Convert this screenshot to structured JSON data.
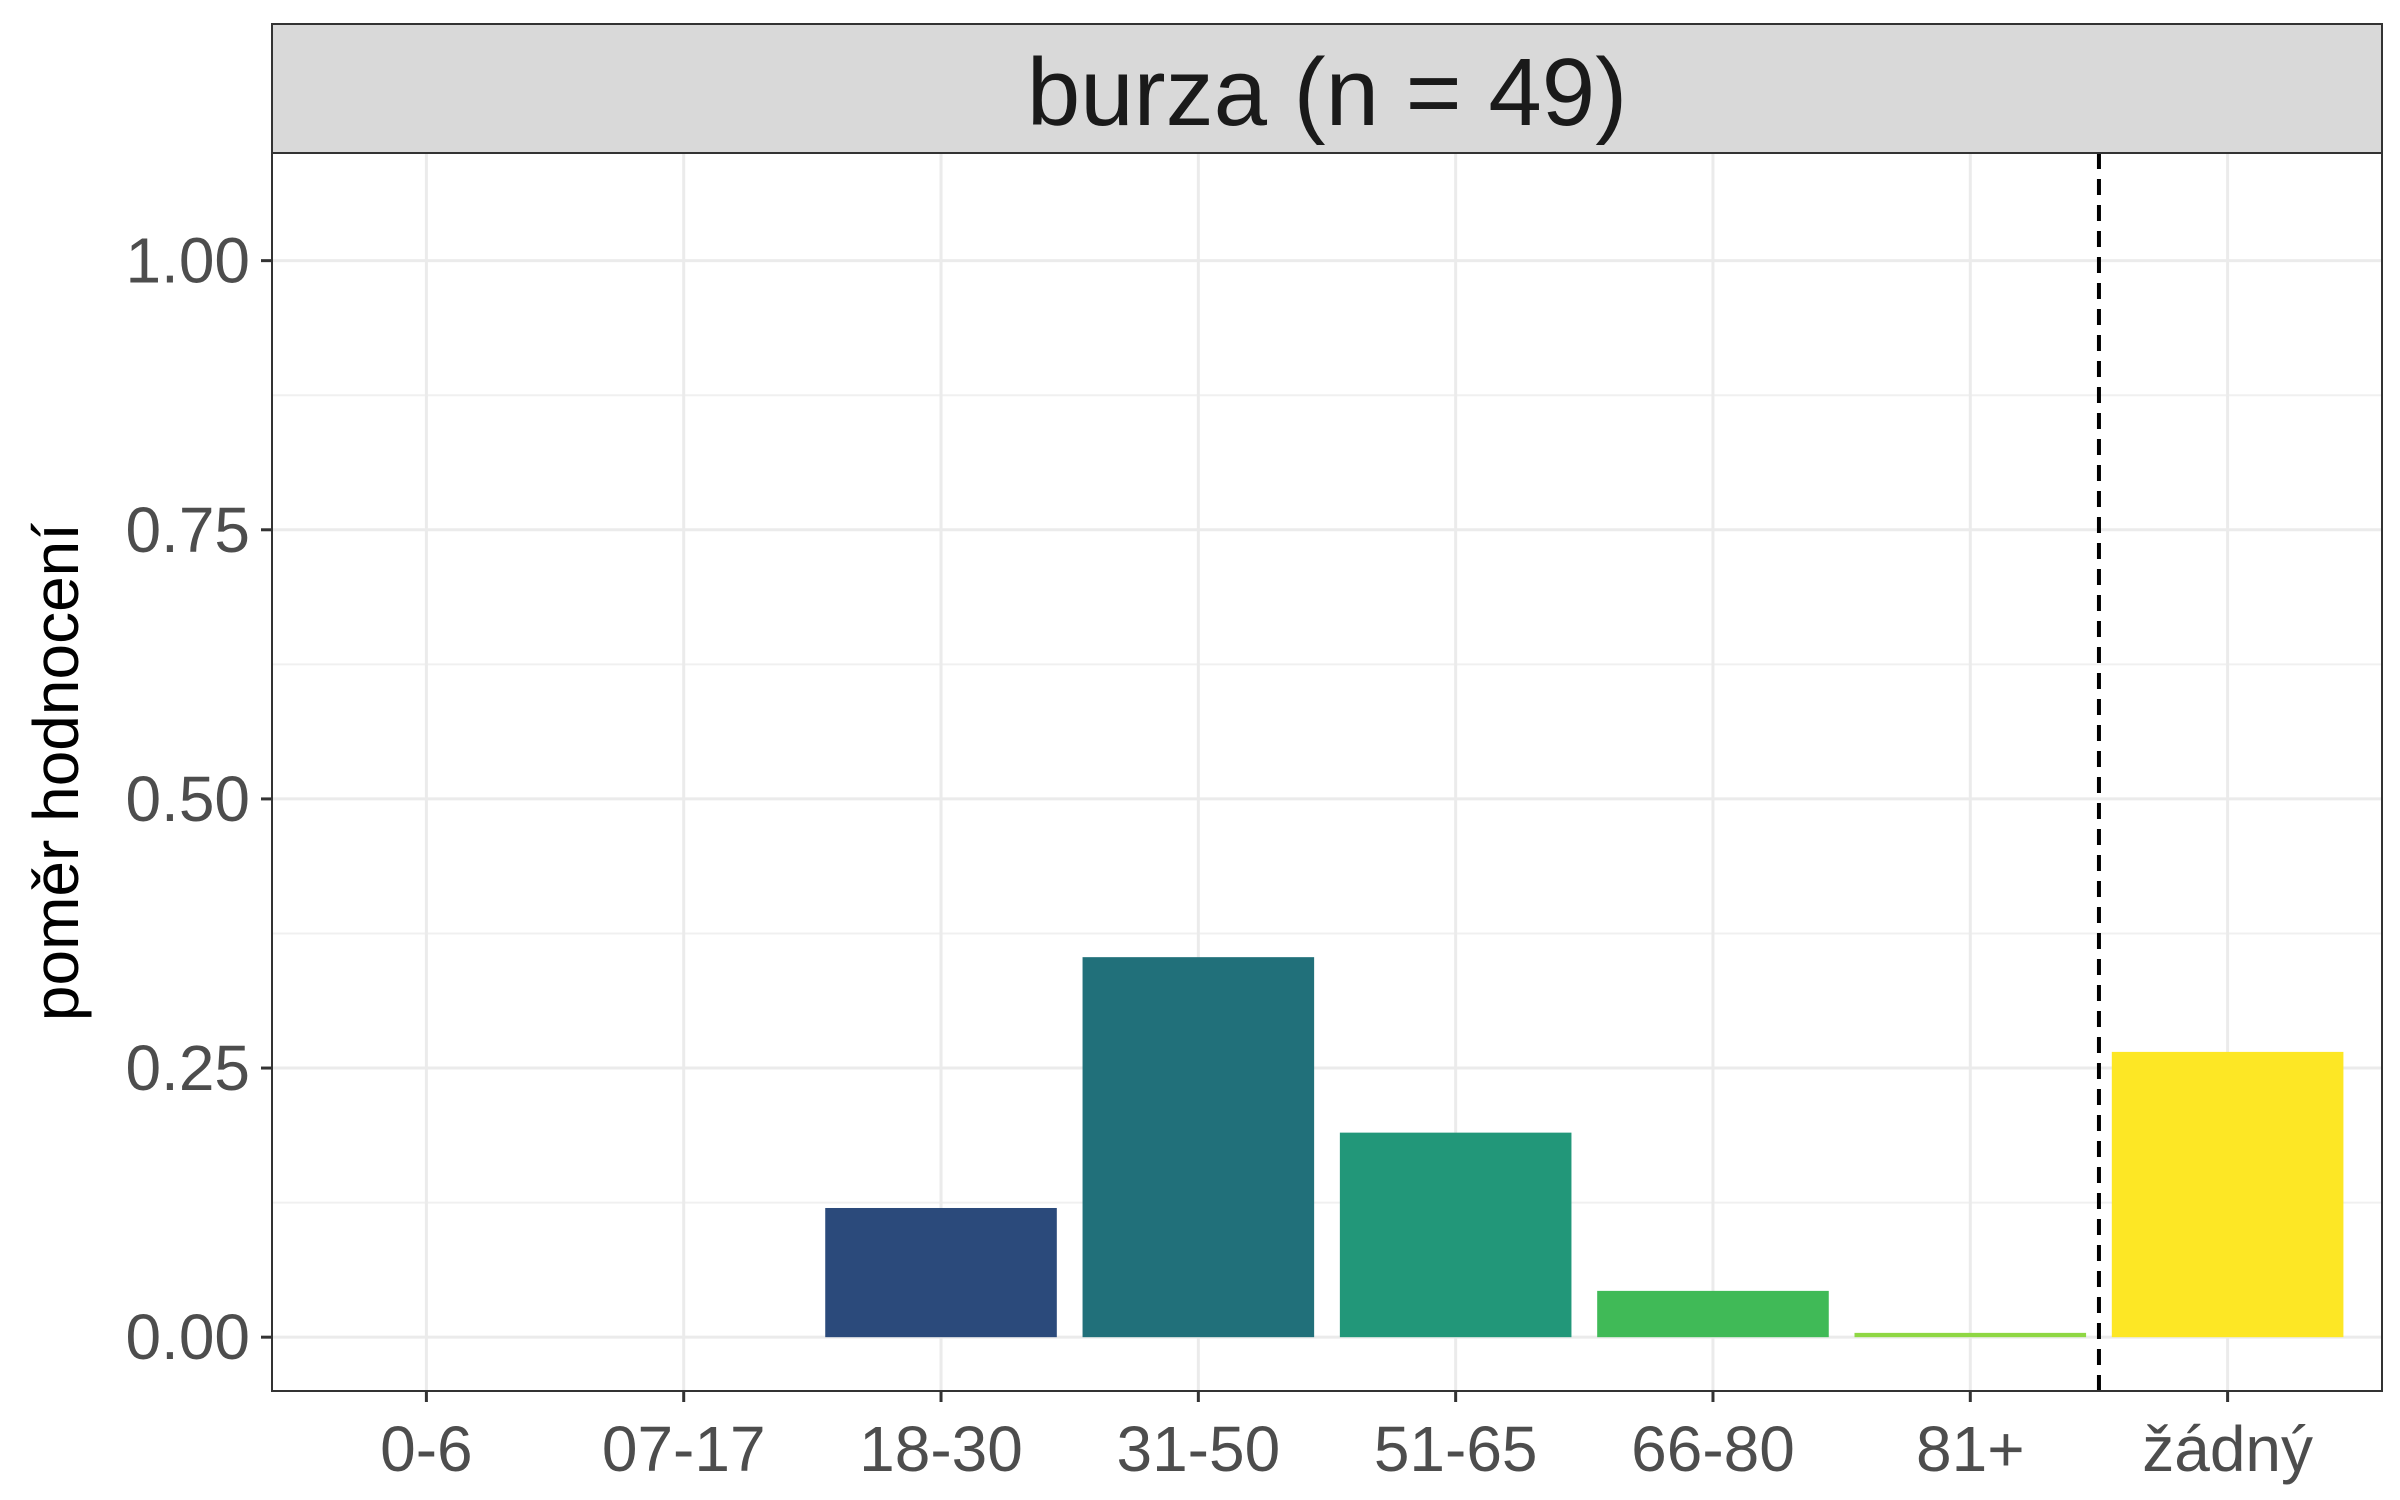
{
  "chart_data": {
    "type": "bar",
    "title": "burza (n = 49)",
    "xlabel": "",
    "ylabel": "poměr hodnocení",
    "categories": [
      "0-6",
      "07-17",
      "18-30",
      "31-50",
      "51-65",
      "66-80",
      "81+",
      "žádný"
    ],
    "values": [
      0,
      0,
      0.12,
      0.353,
      0.19,
      0.043,
      0.004,
      0.265
    ],
    "colors": [
      "#440154",
      "#46337E",
      "#2B4A7B",
      "#21707A",
      "#229779",
      "#40BA57",
      "#8FD744",
      "#FDE725"
    ],
    "ylim": [
      -0.05,
      1.1
    ],
    "yticks": [
      0,
      0.25,
      0.5,
      0.75,
      1
    ],
    "ytick_labels": [
      "0.00",
      "0.25",
      "0.50",
      "0.75",
      "1.00"
    ],
    "reference_line": {
      "between": [
        "81+",
        "žádný"
      ],
      "style": "dashed"
    },
    "grid": true,
    "legend": "none"
  }
}
